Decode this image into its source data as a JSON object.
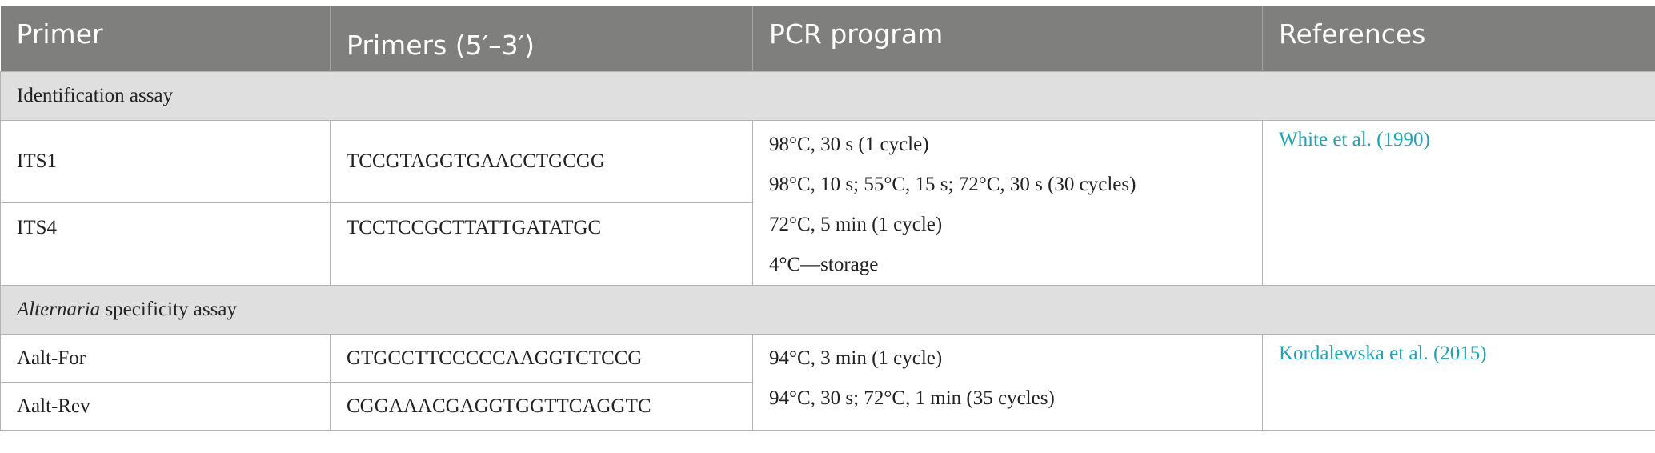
{
  "table": {
    "headers": {
      "primer": "Primer",
      "sequence": "Primers (5′–3′)",
      "pcr": "PCR program",
      "references": "References"
    },
    "sections": [
      {
        "title_italic": "",
        "title_rest": "Identification assay",
        "rows": [
          {
            "primer": "ITS1",
            "sequence": "TCCGTAGGTGAACCTGCGG"
          },
          {
            "primer": "ITS4",
            "sequence": "TCCTCCGCTTATTGATATGC"
          }
        ],
        "pcr_program": [
          "98°C, 30 s (1 cycle)",
          "98°C, 10 s; 55°C, 15 s; 72°C, 30 s (30 cycles)",
          "72°C, 5 min (1 cycle)",
          "4°C—storage"
        ],
        "reference": "White et al. (1990)"
      },
      {
        "title_italic": "Alternaria",
        "title_rest": " specificity assay",
        "rows": [
          {
            "primer": "Aalt-For",
            "sequence": "GTGCCTTCCCCCAAGGTCTCCG"
          },
          {
            "primer": "Aalt-Rev",
            "sequence": "CGGAAACGAGGTGGTTCAGGTC"
          }
        ],
        "pcr_program": [
          "94°C, 3 min (1 cycle)",
          "94°C, 30 s; 72°C, 1 min (35 cycles)"
        ],
        "reference": "Kordalewska et al. (2015)"
      }
    ]
  },
  "colors": {
    "header_bg": "#7f807e",
    "section_bg": "#e0dfe0",
    "link": "#1fa3b5"
  }
}
